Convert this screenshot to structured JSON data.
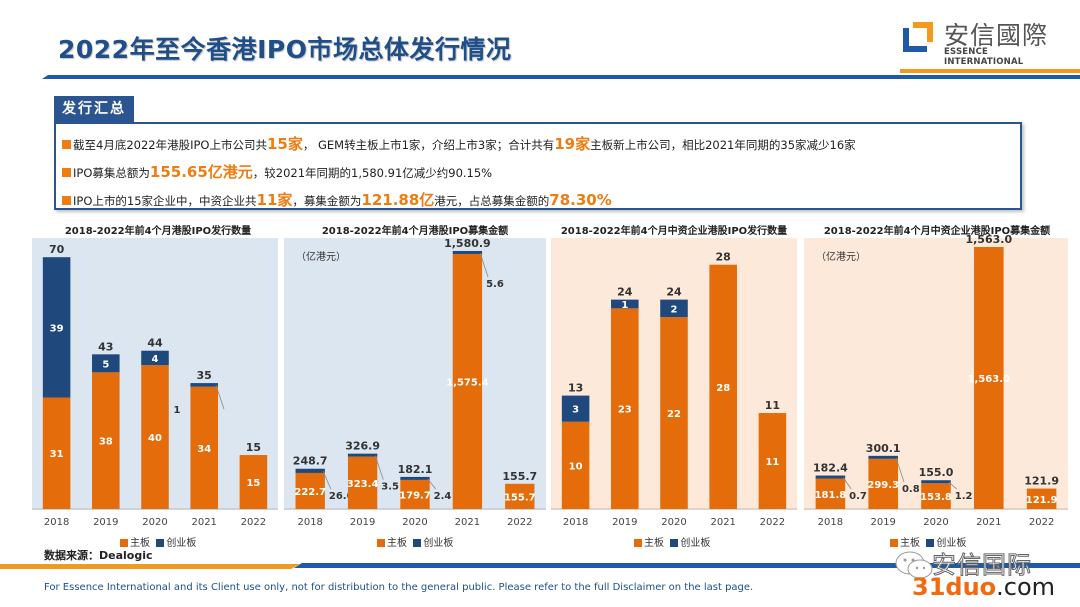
{
  "header": {
    "title": "2022年至今香港IPO市场总体发行情况",
    "logo_cn": "安信國際",
    "logo_en": "ESSENCE INTERNATIONAL"
  },
  "summary": {
    "tab_label": "发行汇总",
    "lines": [
      {
        "parts": [
          "截至4月底2022年港股IPO上市公司共",
          "15家",
          "， GEM转主板上市1家，介绍上市3家；合计共有",
          "19家",
          "主板新上市公司，相比2021年同期的35家减少16家"
        ]
      },
      {
        "parts": [
          "IPO募集总额为",
          "155.65亿港元",
          "，较2021年同期的1,580.91亿减少约90.15%"
        ]
      },
      {
        "parts": [
          "IPO上市的15家企业中，中资企业共",
          "11家",
          "，募集金额为",
          "121.88亿",
          "港元，占总募集金额的",
          "78.30%"
        ]
      }
    ]
  },
  "colors": {
    "main_board": "#e46c0a",
    "gem": "#1f497d",
    "panel_blue": "#dce6f1",
    "panel_peach": "#fde9d9",
    "accent_orange": "#f07c10",
    "title_blue": "#1f4e89"
  },
  "legend": {
    "main_board": "主板",
    "gem": "创业板"
  },
  "source": "数据来源：Dealogic",
  "disclaimer": "For Essence International and its Client use only, not for distribution to the general public. Please refer to the full Disclaimer on the last page.",
  "watermark": {
    "cn": "安信国际",
    "url_main": "31duo",
    "url_tld": ".com"
  },
  "chart_data": [
    {
      "type": "bar",
      "stacked": true,
      "title": "2018-2022年前4个月港股IPO发行数量",
      "unit": "",
      "categories": [
        "2018",
        "2019",
        "2020",
        "2021",
        "2022"
      ],
      "series": [
        {
          "name": "主板",
          "values": [
            31,
            38,
            40,
            34,
            15
          ]
        },
        {
          "name": "创业板",
          "values": [
            39,
            5,
            4,
            1,
            0
          ]
        }
      ],
      "totals": [
        70,
        43,
        44,
        35,
        15
      ],
      "labels_main": [
        "31",
        "38",
        "40",
        "34",
        "15"
      ],
      "labels_gem": [
        "39",
        "5",
        "4",
        "1",
        ""
      ],
      "labels_total": [
        "70",
        "43",
        "44",
        "35",
        "15"
      ],
      "gem_callout": [
        false,
        false,
        false,
        true,
        false
      ],
      "ylim": [
        0,
        72
      ],
      "legend": "bottom"
    },
    {
      "type": "bar",
      "stacked": true,
      "title": "2018-2022年前4个月港股IPO募集金额",
      "unit": "（亿港元）",
      "categories": [
        "2018",
        "2019",
        "2020",
        "2021",
        "2022"
      ],
      "series": [
        {
          "name": "主板",
          "values": [
            222.7,
            323.4,
            179.7,
            1575.4,
            155.7
          ]
        },
        {
          "name": "创业板",
          "values": [
            26.0,
            3.5,
            2.4,
            5.6,
            0
          ]
        }
      ],
      "totals": [
        248.7,
        326.9,
        182.1,
        1580.9,
        155.7
      ],
      "labels_main": [
        "222.7",
        "323.4",
        "179.7",
        "1,575.4",
        "155.7"
      ],
      "labels_gem": [
        "26.0",
        "3.5",
        "2.4",
        "5.6",
        ""
      ],
      "labels_total": [
        "248.7",
        "326.9",
        "182.1",
        "1,580.9",
        "155.7"
      ],
      "gem_callout": [
        true,
        true,
        true,
        true,
        false
      ],
      "ylim": [
        0,
        1600
      ],
      "legend": "bottom"
    },
    {
      "type": "bar",
      "stacked": true,
      "title": "2018-2022年前4个月中资企业港股IPO发行数量",
      "unit": "",
      "categories": [
        "2018",
        "2019",
        "2020",
        "2021",
        "2022"
      ],
      "series": [
        {
          "name": "主板",
          "values": [
            10,
            23,
            22,
            28,
            11
          ]
        },
        {
          "name": "创业板",
          "values": [
            3,
            1,
            2,
            0,
            0
          ]
        }
      ],
      "totals": [
        13,
        24,
        24,
        28,
        11
      ],
      "labels_main": [
        "10",
        "23",
        "22",
        "28",
        "11"
      ],
      "labels_gem": [
        "3",
        "1",
        "2",
        "",
        ""
      ],
      "labels_total": [
        "13",
        "24",
        "24",
        "28",
        "11"
      ],
      "gem_callout": [
        false,
        false,
        false,
        false,
        false
      ],
      "ylim": [
        0,
        29
      ],
      "legend": "bottom"
    },
    {
      "type": "bar",
      "stacked": true,
      "title": "2018-2022年前4个月中资企业港股IPO募集金额",
      "unit": "（亿港元）",
      "categories": [
        "2018",
        "2019",
        "2020",
        "2021",
        "2022"
      ],
      "series": [
        {
          "name": "主板",
          "values": [
            181.8,
            299.3,
            153.8,
            1563.0,
            121.9
          ]
        },
        {
          "name": "创业板",
          "values": [
            0.7,
            0.8,
            1.2,
            0,
            0
          ]
        }
      ],
      "totals": [
        182.4,
        300.1,
        155.0,
        1563.0,
        121.9
      ],
      "labels_main": [
        "181.8",
        "299.3",
        "153.8",
        "1,563.0",
        "121.9"
      ],
      "labels_gem": [
        "0.7",
        "0.8",
        "1.2",
        "",
        ""
      ],
      "labels_total": [
        "182.4",
        "300.1",
        "155.0",
        "1,563.0",
        "121.9"
      ],
      "gem_callout": [
        true,
        true,
        true,
        false,
        false
      ],
      "ylim": [
        0,
        1575
      ],
      "legend": "bottom"
    }
  ]
}
